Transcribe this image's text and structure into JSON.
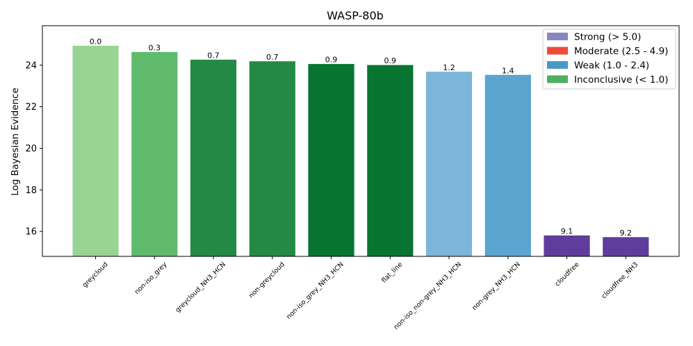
{
  "chart_data": {
    "type": "bar",
    "title": "WASP-80b",
    "xlabel": "",
    "ylabel": "Log Bayesian Evidence",
    "ylim": [
      14.8,
      25.9
    ],
    "yticks": [
      16,
      18,
      20,
      22,
      24
    ],
    "categories": [
      "greycloud",
      "non-iso_grey",
      "greycloud_NH3_HCN",
      "non-greycloud",
      "non-iso_grey_NH3_HCN",
      "flat_line",
      "non-iso_non-grey_NH3_HCN",
      "non-grey_NH3_HCN",
      "cloudfree",
      "cloudfree_NH3"
    ],
    "values": [
      24.95,
      24.65,
      24.28,
      24.2,
      24.07,
      24.02,
      23.7,
      23.55,
      15.82,
      15.74
    ],
    "bar_labels": [
      "0.0",
      "0.3",
      "0.7",
      "0.7",
      "0.9",
      "0.9",
      "1.2",
      "1.4",
      "9.1",
      "9.2"
    ],
    "bar_colors": [
      "#98d594",
      "#60ba6c",
      "#228a44",
      "#228a44",
      "#087432",
      "#087432",
      "#7bb5d9",
      "#5ca4d0",
      "#5f3d9c",
      "#5f3d9c"
    ],
    "grid": false,
    "legend_position": "top-right",
    "legend": [
      {
        "label": "Strong (> 5.0)",
        "color": "#8a85c1"
      },
      {
        "label": "Moderate (2.5 - 4.9)",
        "color": "#ee4c3a"
      },
      {
        "label": "Weak (1.0 - 2.4)",
        "color": "#4a98c9"
      },
      {
        "label": "Inconclusive (< 1.0)",
        "color": "#4eaf62"
      }
    ]
  }
}
